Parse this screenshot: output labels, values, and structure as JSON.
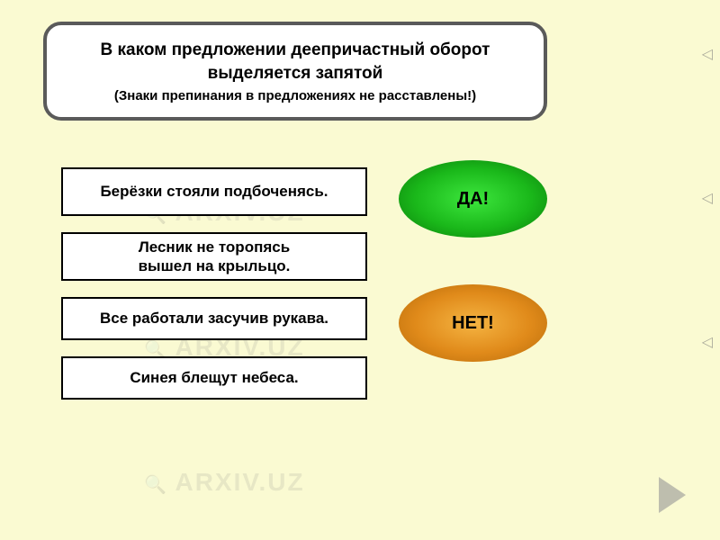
{
  "background_color": "#FAFAD2",
  "watermark_text": "ARXIV.UZ",
  "question": {
    "title_line1": "В каком предложении деепричастный оборот",
    "title_line2": "выделяется запятой",
    "subtitle": "(Знаки препинания в предложениях не расставлены!)",
    "box_bg": "#FFFFFF",
    "border_color": "#5a5a5a",
    "border_radius": 20,
    "title_fontsize": 19,
    "subtitle_fontsize": 15
  },
  "options": [
    {
      "text": "Берёзки стояли подбоченясь."
    },
    {
      "text": "Лесник не торопясь\nвышел на крыльцо."
    },
    {
      "text": "Все работали засучив рукава."
    },
    {
      "text": "Синея  блещут небеса."
    }
  ],
  "option_style": {
    "bg": "#FFFFFF",
    "border_color": "#000000",
    "fontsize": 17,
    "font_weight": "bold"
  },
  "feedback": {
    "yes": {
      "label": "ДА!",
      "gradient": [
        "#3de63d",
        "#1ab81a",
        "#0a7a0a"
      ],
      "fontsize": 20
    },
    "no": {
      "label": "НЕТ!",
      "gradient": [
        "#f5b442",
        "#e08a1a",
        "#b56a0a"
      ],
      "fontsize": 20
    }
  },
  "side_marker": "◁",
  "nav": {
    "next_color": "rgba(150,150,150,0.6)"
  }
}
